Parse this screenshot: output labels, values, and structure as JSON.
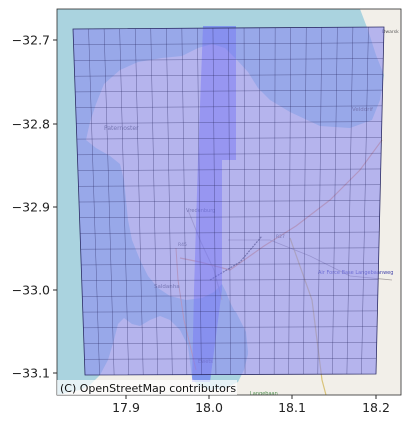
{
  "map": {
    "attribution": "(C) OpenStreetMap contributors",
    "place_labels": [
      "Paternoster",
      "Vredenburg",
      "Saldanha",
      "Langebaan",
      "Velddrif",
      "Air Force Base Langebaanweg",
      "Ewets",
      "R45",
      "R27",
      "Dwarsk"
    ],
    "colors": {
      "sea": "#aad3df",
      "land": "#f2efe9",
      "grid_fill": "#8c8cf0",
      "grid_fill_opacity": 0.6,
      "strip_fill": "#4b4bff",
      "grid_line": "#2c2c66"
    }
  },
  "axes": {
    "x_ticks": [
      "17.9",
      "18.0",
      "18.1",
      "18.2"
    ],
    "y_ticks": [
      "−32.7",
      "−32.8",
      "−32.9",
      "−33.0",
      "−33.1"
    ]
  }
}
